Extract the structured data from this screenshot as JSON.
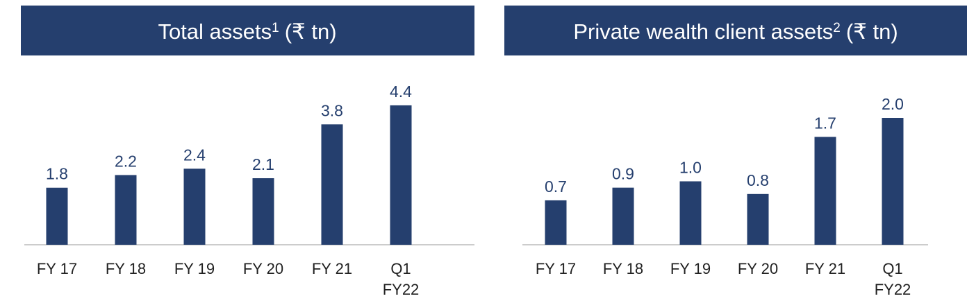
{
  "chart_data": [
    {
      "type": "bar",
      "title": "Total assets",
      "title_superscript": "1",
      "title_unit": "(₹ tn)",
      "categories": [
        "FY 17",
        "FY 18",
        "FY 19",
        "FY 20",
        "FY 21",
        "Q1\nFY22"
      ],
      "values": [
        1.8,
        2.2,
        2.4,
        2.1,
        3.8,
        4.4
      ],
      "color": "#253f6e"
    },
    {
      "type": "bar",
      "title": "Private wealth client assets",
      "title_superscript": "2",
      "title_unit": "(₹ tn)",
      "categories": [
        "FY 17",
        "FY 18",
        "FY 19",
        "FY 20",
        "FY 21",
        "Q1\nFY22"
      ],
      "values": [
        0.7,
        0.9,
        1.0,
        0.8,
        1.7,
        2.0
      ],
      "value_labels": [
        "0.7",
        "0.9",
        "1.0",
        "0.8",
        "1.7",
        "2.0"
      ],
      "color": "#253f6e"
    }
  ]
}
